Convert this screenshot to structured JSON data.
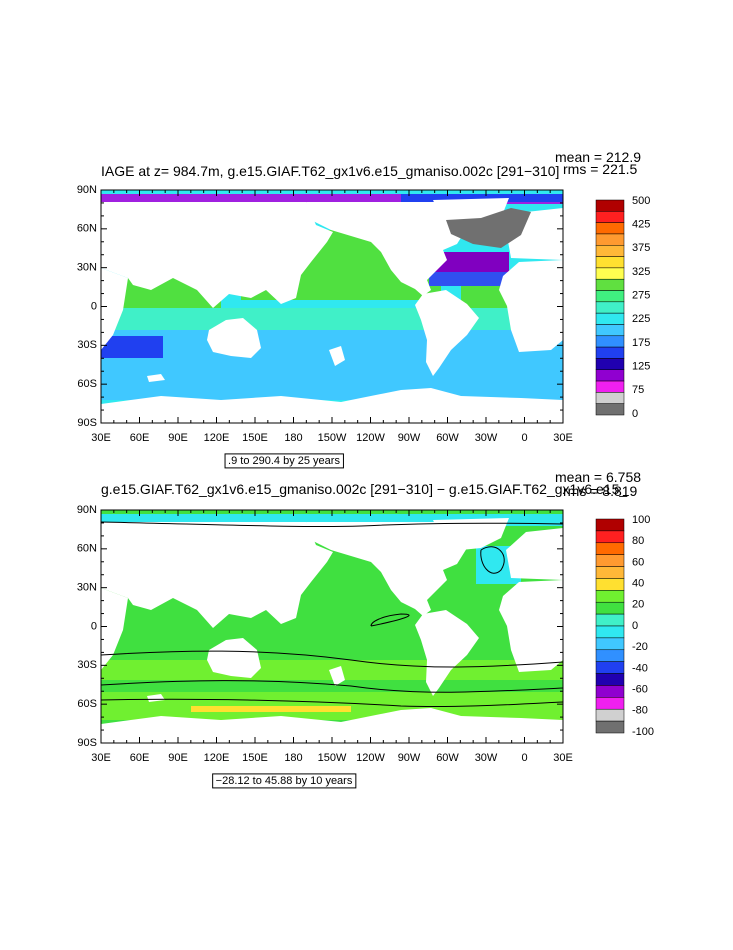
{
  "panels": [
    {
      "title": "IAGE at z= 984.7m, g.e15.GIAF.T62_gx1v6.e15_gmaniso.002c [291−310]",
      "mean": "mean = 212.9",
      "rms": "rms = 221.5",
      "note": ".9 to 290.4 by 25 years",
      "colorbar": {
        "colors": [
          "#b00000",
          "#ff2020",
          "#ff6a00",
          "#ff9a30",
          "#ffb838",
          "#ffe030",
          "#ffff50",
          "#60e040",
          "#40f080",
          "#40f0c8",
          "#30e8f0",
          "#40c8ff",
          "#3090ff",
          "#2040f0",
          "#2000b0",
          "#9000d0",
          "#f020f0",
          "#d0d0d0",
          "#707070"
        ],
        "labels": [
          500,
          425,
          375,
          325,
          275,
          225,
          175,
          125,
          75,
          0
        ]
      }
    },
    {
      "title": "g.e15.GIAF.T62_gx1v6.e15_gmaniso.002c [291−310] − g.e15.GIAF.T62_gx1v6.e15_",
      "mean": "mean = 6.758",
      "rms": "rms = 8.819",
      "note": "−28.12 to 45.88 by 10 years",
      "colorbar": {
        "colors": [
          "#b00000",
          "#ff2020",
          "#ff6a00",
          "#ff9a30",
          "#ffb838",
          "#ffe030",
          "#70f030",
          "#40e040",
          "#40f0c8",
          "#30e8f0",
          "#40c8ff",
          "#3090ff",
          "#2040f0",
          "#2000b0",
          "#9000d0",
          "#f020f0",
          "#d0d0d0",
          "#707070"
        ],
        "labels": [
          100,
          80,
          60,
          40,
          20,
          0,
          -20,
          -40,
          -60,
          -80,
          -100
        ]
      }
    }
  ],
  "lon_labels": [
    "30E",
    "60E",
    "90E",
    "120E",
    "150E",
    "180",
    "150W",
    "120W",
    "90W",
    "60W",
    "30W",
    "0",
    "30E"
  ],
  "lat_labels": [
    "90N",
    "60N",
    "30N",
    "0",
    "30S",
    "60S",
    "90S"
  ]
}
